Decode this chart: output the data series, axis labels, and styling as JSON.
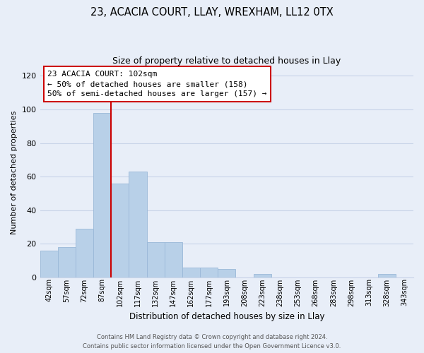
{
  "title1": "23, ACACIA COURT, LLAY, WREXHAM, LL12 0TX",
  "title2": "Size of property relative to detached houses in Llay",
  "xlabel": "Distribution of detached houses by size in Llay",
  "ylabel": "Number of detached properties",
  "bar_labels": [
    "42sqm",
    "57sqm",
    "72sqm",
    "87sqm",
    "102sqm",
    "117sqm",
    "132sqm",
    "147sqm",
    "162sqm",
    "177sqm",
    "193sqm",
    "208sqm",
    "223sqm",
    "238sqm",
    "253sqm",
    "268sqm",
    "283sqm",
    "298sqm",
    "313sqm",
    "328sqm",
    "343sqm"
  ],
  "bar_values": [
    16,
    18,
    29,
    98,
    56,
    63,
    21,
    21,
    6,
    6,
    5,
    0,
    2,
    0,
    0,
    0,
    0,
    0,
    0,
    2,
    0
  ],
  "bar_color": "#b8d0e8",
  "bar_edge_color": "#9ab8d8",
  "vline_x": 4,
  "vline_color": "#cc0000",
  "annotation_title": "23 ACACIA COURT: 102sqm",
  "annotation_line1": "← 50% of detached houses are smaller (158)",
  "annotation_line2": "50% of semi-detached houses are larger (157) →",
  "annotation_box_facecolor": "#ffffff",
  "annotation_box_edgecolor": "#cc0000",
  "ylim": [
    0,
    125
  ],
  "yticks": [
    0,
    20,
    40,
    60,
    80,
    100,
    120
  ],
  "grid_color": "#c8d4e8",
  "bg_color": "#e8eef8",
  "footnote1": "Contains HM Land Registry data © Crown copyright and database right 2024.",
  "footnote2": "Contains public sector information licensed under the Open Government Licence v3.0."
}
